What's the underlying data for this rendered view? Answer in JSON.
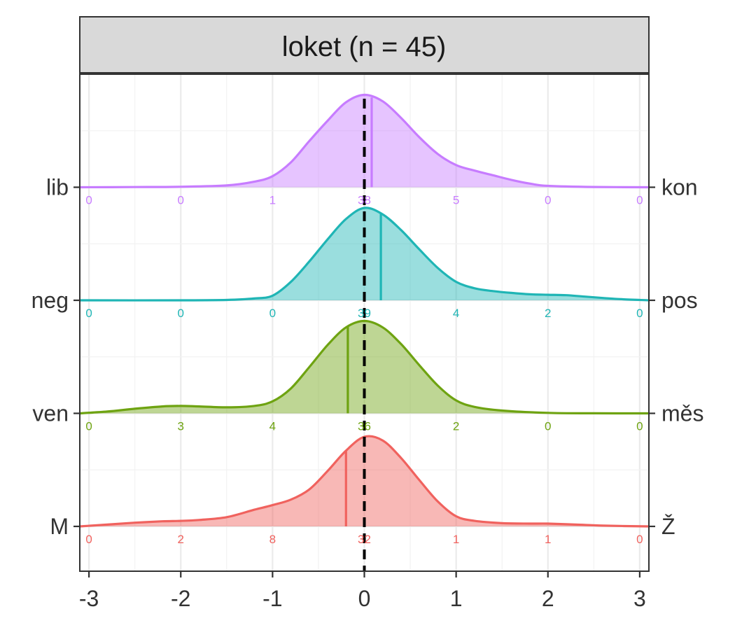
{
  "chart_data": {
    "type": "ridgeline-density",
    "title": "loket (n = 45)",
    "xlabel": "",
    "ylabel": "",
    "xlim": [
      -3.1,
      3.1
    ],
    "x_ticks": [
      -3,
      -2,
      -1,
      0,
      1,
      2,
      3
    ],
    "x_tick_labels": [
      "-3",
      "-2",
      "-1",
      "0",
      "1",
      "2",
      "3"
    ],
    "count_positions": [
      -3,
      -2,
      -1,
      0,
      1,
      2,
      3
    ],
    "reference_line_x": 0,
    "grid": true,
    "rows": [
      {
        "left_label": "lib",
        "right_label": "kon",
        "color": "#C77CFF",
        "mean": 0.08,
        "counts": [
          "0",
          "0",
          "1",
          "38",
          "5",
          "0",
          "0"
        ],
        "density": [
          [
            -3.1,
            0
          ],
          [
            -2.5,
            0.002
          ],
          [
            -2,
            0.005
          ],
          [
            -1.5,
            0.02
          ],
          [
            -1.2,
            0.06
          ],
          [
            -1,
            0.12
          ],
          [
            -0.8,
            0.27
          ],
          [
            -0.6,
            0.5
          ],
          [
            -0.4,
            0.72
          ],
          [
            -0.2,
            0.92
          ],
          [
            0,
            1
          ],
          [
            0.2,
            0.93
          ],
          [
            0.4,
            0.75
          ],
          [
            0.6,
            0.54
          ],
          [
            0.8,
            0.36
          ],
          [
            1,
            0.24
          ],
          [
            1.2,
            0.18
          ],
          [
            1.4,
            0.13
          ],
          [
            1.6,
            0.08
          ],
          [
            1.8,
            0.04
          ],
          [
            2,
            0.015
          ],
          [
            2.5,
            0.003
          ],
          [
            3.1,
            0
          ]
        ]
      },
      {
        "left_label": "neg",
        "right_label": "pos",
        "color": "#1FB5B5",
        "mean": 0.18,
        "counts": [
          "0",
          "0",
          "0",
          "39",
          "4",
          "2",
          "0"
        ],
        "density": [
          [
            -3.1,
            0
          ],
          [
            -2,
            0
          ],
          [
            -1.5,
            0.004
          ],
          [
            -1.2,
            0.02
          ],
          [
            -1,
            0.05
          ],
          [
            -0.8,
            0.2
          ],
          [
            -0.6,
            0.42
          ],
          [
            -0.4,
            0.66
          ],
          [
            -0.2,
            0.88
          ],
          [
            0,
            1
          ],
          [
            0.2,
            0.93
          ],
          [
            0.4,
            0.76
          ],
          [
            0.6,
            0.55
          ],
          [
            0.8,
            0.35
          ],
          [
            1,
            0.2
          ],
          [
            1.2,
            0.13
          ],
          [
            1.4,
            0.1
          ],
          [
            1.6,
            0.08
          ],
          [
            1.8,
            0.065
          ],
          [
            2,
            0.06
          ],
          [
            2.2,
            0.055
          ],
          [
            2.4,
            0.04
          ],
          [
            2.6,
            0.025
          ],
          [
            2.8,
            0.012
          ],
          [
            3.1,
            0
          ]
        ]
      },
      {
        "left_label": "ven",
        "right_label": "měs",
        "color": "#6EA311",
        "mean": -0.18,
        "counts": [
          "0",
          "3",
          "4",
          "36",
          "2",
          "0",
          "0"
        ],
        "density": [
          [
            -3.1,
            0
          ],
          [
            -2.8,
            0.02
          ],
          [
            -2.5,
            0.05
          ],
          [
            -2.2,
            0.075
          ],
          [
            -2,
            0.08
          ],
          [
            -1.8,
            0.075
          ],
          [
            -1.5,
            0.065
          ],
          [
            -1.2,
            0.08
          ],
          [
            -1,
            0.13
          ],
          [
            -0.8,
            0.27
          ],
          [
            -0.6,
            0.5
          ],
          [
            -0.4,
            0.74
          ],
          [
            -0.2,
            0.93
          ],
          [
            0,
            1
          ],
          [
            0.2,
            0.93
          ],
          [
            0.4,
            0.75
          ],
          [
            0.6,
            0.52
          ],
          [
            0.8,
            0.3
          ],
          [
            1,
            0.14
          ],
          [
            1.2,
            0.07
          ],
          [
            1.5,
            0.03
          ],
          [
            2,
            0.005
          ],
          [
            2.5,
            0.001
          ],
          [
            3.1,
            0
          ]
        ]
      },
      {
        "left_label": "M",
        "right_label": "Ž",
        "color": "#F0625E",
        "mean": -0.2,
        "counts": [
          "0",
          "2",
          "8",
          "32",
          "1",
          "1",
          "0"
        ],
        "density": [
          [
            -3.1,
            0
          ],
          [
            -2.8,
            0.02
          ],
          [
            -2.5,
            0.04
          ],
          [
            -2.2,
            0.055
          ],
          [
            -2,
            0.06
          ],
          [
            -1.8,
            0.07
          ],
          [
            -1.5,
            0.1
          ],
          [
            -1.2,
            0.18
          ],
          [
            -1,
            0.23
          ],
          [
            -0.8,
            0.29
          ],
          [
            -0.6,
            0.4
          ],
          [
            -0.4,
            0.6
          ],
          [
            -0.2,
            0.82
          ],
          [
            0,
            0.97
          ],
          [
            0.2,
            0.93
          ],
          [
            0.4,
            0.74
          ],
          [
            0.6,
            0.5
          ],
          [
            0.8,
            0.27
          ],
          [
            1,
            0.11
          ],
          [
            1.2,
            0.06
          ],
          [
            1.5,
            0.035
          ],
          [
            1.8,
            0.03
          ],
          [
            2,
            0.03
          ],
          [
            2.3,
            0.02
          ],
          [
            2.6,
            0.008
          ],
          [
            3.1,
            0
          ]
        ]
      }
    ]
  }
}
